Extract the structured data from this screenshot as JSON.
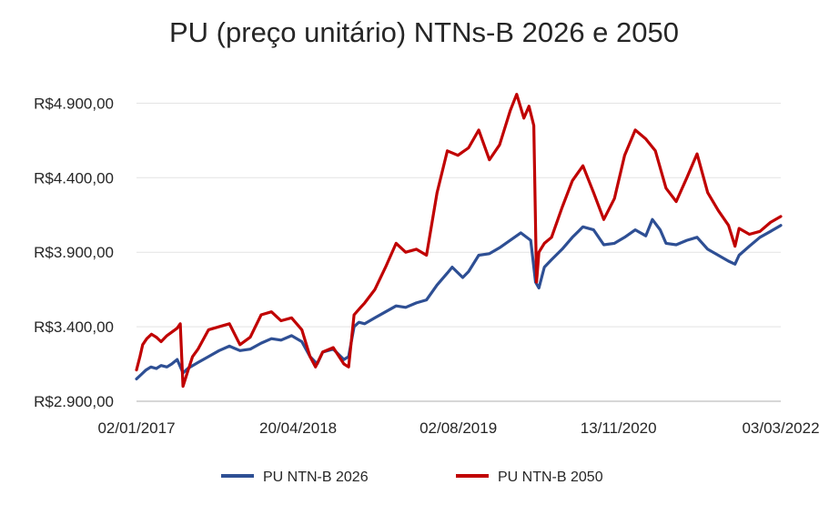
{
  "chart_data": {
    "type": "line",
    "title": "PU (preço unitário) NTNs-B 2026 e 2050",
    "xlabel": "",
    "ylabel": "",
    "x_range": [
      "2017-01-02",
      "2022-03-03"
    ],
    "x_ticks": [
      "02/01/2017",
      "20/04/2018",
      "02/08/2019",
      "13/11/2020",
      "03/03/2022"
    ],
    "y_ticks": [
      "R$2.900,00",
      "R$3.400,00",
      "R$3.900,00",
      "R$4.400,00",
      "R$4.900,00"
    ],
    "ylim": [
      2900,
      5000
    ],
    "grid": true,
    "legend_position": "bottom",
    "series": [
      {
        "name": "PU NTN-B 2026",
        "color": "#2e4f94",
        "points": [
          [
            "2017-01-02",
            3050
          ],
          [
            "2017-01-16",
            3080
          ],
          [
            "2017-01-30",
            3110
          ],
          [
            "2017-02-13",
            3130
          ],
          [
            "2017-03-01",
            3120
          ],
          [
            "2017-03-15",
            3140
          ],
          [
            "2017-04-01",
            3130
          ],
          [
            "2017-04-15",
            3150
          ],
          [
            "2017-05-01",
            3180
          ],
          [
            "2017-05-18",
            3090
          ],
          [
            "2017-06-01",
            3120
          ],
          [
            "2017-07-01",
            3160
          ],
          [
            "2017-08-01",
            3200
          ],
          [
            "2017-09-01",
            3240
          ],
          [
            "2017-10-01",
            3270
          ],
          [
            "2017-11-01",
            3240
          ],
          [
            "2017-12-01",
            3250
          ],
          [
            "2018-01-02",
            3290
          ],
          [
            "2018-02-01",
            3320
          ],
          [
            "2018-03-01",
            3310
          ],
          [
            "2018-04-01",
            3340
          ],
          [
            "2018-05-01",
            3300
          ],
          [
            "2018-05-25",
            3200
          ],
          [
            "2018-06-15",
            3150
          ],
          [
            "2018-07-01",
            3230
          ],
          [
            "2018-08-01",
            3250
          ],
          [
            "2018-09-01",
            3180
          ],
          [
            "2018-09-15",
            3200
          ],
          [
            "2018-10-01",
            3400
          ],
          [
            "2018-10-15",
            3430
          ],
          [
            "2018-11-01",
            3420
          ],
          [
            "2018-12-01",
            3460
          ],
          [
            "2019-01-01",
            3500
          ],
          [
            "2019-02-01",
            3540
          ],
          [
            "2019-03-01",
            3530
          ],
          [
            "2019-04-01",
            3560
          ],
          [
            "2019-05-01",
            3580
          ],
          [
            "2019-06-01",
            3680
          ],
          [
            "2019-07-01",
            3760
          ],
          [
            "2019-07-15",
            3800
          ],
          [
            "2019-08-15",
            3730
          ],
          [
            "2019-09-01",
            3770
          ],
          [
            "2019-10-01",
            3880
          ],
          [
            "2019-11-01",
            3890
          ],
          [
            "2019-12-01",
            3930
          ],
          [
            "2020-01-01",
            3980
          ],
          [
            "2020-02-01",
            4030
          ],
          [
            "2020-03-01",
            3980
          ],
          [
            "2020-03-15",
            3700
          ],
          [
            "2020-03-25",
            3660
          ],
          [
            "2020-04-10",
            3800
          ],
          [
            "2020-05-01",
            3850
          ],
          [
            "2020-06-01",
            3920
          ],
          [
            "2020-07-01",
            4000
          ],
          [
            "2020-08-01",
            4070
          ],
          [
            "2020-09-01",
            4050
          ],
          [
            "2020-10-01",
            3950
          ],
          [
            "2020-11-01",
            3960
          ],
          [
            "2020-12-01",
            4000
          ],
          [
            "2021-01-01",
            4050
          ],
          [
            "2021-02-01",
            4010
          ],
          [
            "2021-02-20",
            4120
          ],
          [
            "2021-03-15",
            4050
          ],
          [
            "2021-04-01",
            3960
          ],
          [
            "2021-05-01",
            3950
          ],
          [
            "2021-06-01",
            3980
          ],
          [
            "2021-07-01",
            4000
          ],
          [
            "2021-08-01",
            3920
          ],
          [
            "2021-09-01",
            3880
          ],
          [
            "2021-10-01",
            3840
          ],
          [
            "2021-10-20",
            3820
          ],
          [
            "2021-11-01",
            3880
          ],
          [
            "2021-12-01",
            3940
          ],
          [
            "2022-01-01",
            4000
          ],
          [
            "2022-02-01",
            4040
          ],
          [
            "2022-03-03",
            4080
          ]
        ]
      },
      {
        "name": "PU NTN-B 2050",
        "color": "#c00000",
        "points": [
          [
            "2017-01-02",
            3110
          ],
          [
            "2017-01-12",
            3200
          ],
          [
            "2017-01-20",
            3280
          ],
          [
            "2017-02-01",
            3320
          ],
          [
            "2017-02-15",
            3350
          ],
          [
            "2017-03-01",
            3330
          ],
          [
            "2017-03-15",
            3300
          ],
          [
            "2017-04-01",
            3340
          ],
          [
            "2017-05-01",
            3390
          ],
          [
            "2017-05-10",
            3420
          ],
          [
            "2017-05-18",
            3000
          ],
          [
            "2017-06-01",
            3100
          ],
          [
            "2017-06-15",
            3200
          ],
          [
            "2017-07-01",
            3250
          ],
          [
            "2017-08-01",
            3380
          ],
          [
            "2017-09-01",
            3400
          ],
          [
            "2017-10-01",
            3420
          ],
          [
            "2017-11-01",
            3280
          ],
          [
            "2017-12-01",
            3330
          ],
          [
            "2018-01-02",
            3480
          ],
          [
            "2018-02-01",
            3500
          ],
          [
            "2018-03-01",
            3440
          ],
          [
            "2018-04-01",
            3460
          ],
          [
            "2018-05-01",
            3380
          ],
          [
            "2018-05-25",
            3200
          ],
          [
            "2018-06-10",
            3130
          ],
          [
            "2018-07-01",
            3230
          ],
          [
            "2018-08-01",
            3260
          ],
          [
            "2018-09-01",
            3150
          ],
          [
            "2018-09-15",
            3130
          ],
          [
            "2018-10-01",
            3480
          ],
          [
            "2018-10-20",
            3530
          ],
          [
            "2018-11-01",
            3560
          ],
          [
            "2018-12-01",
            3650
          ],
          [
            "2019-01-01",
            3800
          ],
          [
            "2019-02-01",
            3960
          ],
          [
            "2019-03-01",
            3900
          ],
          [
            "2019-04-01",
            3920
          ],
          [
            "2019-05-01",
            3880
          ],
          [
            "2019-06-01",
            4300
          ],
          [
            "2019-07-01",
            4580
          ],
          [
            "2019-08-01",
            4550
          ],
          [
            "2019-09-01",
            4600
          ],
          [
            "2019-10-01",
            4720
          ],
          [
            "2019-11-01",
            4520
          ],
          [
            "2019-12-01",
            4620
          ],
          [
            "2020-01-01",
            4850
          ],
          [
            "2020-01-20",
            4960
          ],
          [
            "2020-02-10",
            4800
          ],
          [
            "2020-02-25",
            4880
          ],
          [
            "2020-03-10",
            4750
          ],
          [
            "2020-03-18",
            3700
          ],
          [
            "2020-03-25",
            3900
          ],
          [
            "2020-04-10",
            3960
          ],
          [
            "2020-05-01",
            4000
          ],
          [
            "2020-06-01",
            4200
          ],
          [
            "2020-07-01",
            4380
          ],
          [
            "2020-08-01",
            4480
          ],
          [
            "2020-09-01",
            4300
          ],
          [
            "2020-10-01",
            4120
          ],
          [
            "2020-11-01",
            4260
          ],
          [
            "2020-12-01",
            4550
          ],
          [
            "2021-01-01",
            4720
          ],
          [
            "2021-02-01",
            4660
          ],
          [
            "2021-03-01",
            4580
          ],
          [
            "2021-04-01",
            4330
          ],
          [
            "2021-05-01",
            4240
          ],
          [
            "2021-06-01",
            4400
          ],
          [
            "2021-07-01",
            4560
          ],
          [
            "2021-08-01",
            4300
          ],
          [
            "2021-09-01",
            4180
          ],
          [
            "2021-10-01",
            4080
          ],
          [
            "2021-10-20",
            3940
          ],
          [
            "2021-11-01",
            4060
          ],
          [
            "2021-12-01",
            4020
          ],
          [
            "2022-01-01",
            4040
          ],
          [
            "2022-02-01",
            4100
          ],
          [
            "2022-03-03",
            4140
          ]
        ]
      }
    ]
  }
}
